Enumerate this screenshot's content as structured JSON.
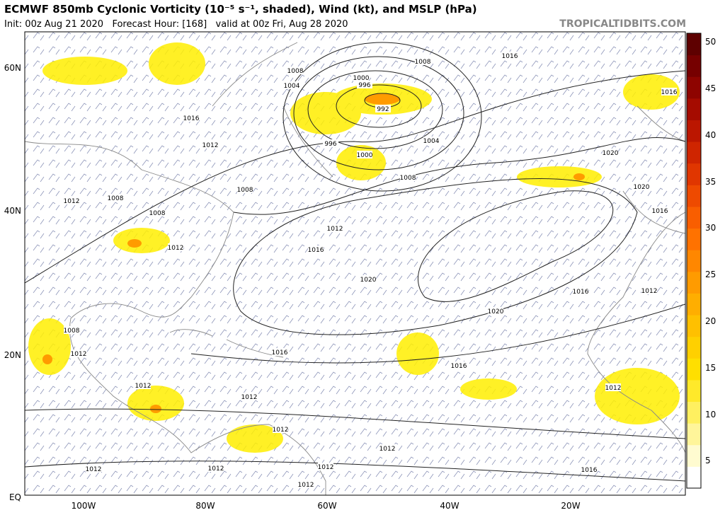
{
  "header": {
    "title": "ECMWF 850mb Cyclonic Vorticity (10⁻⁵ s⁻¹, shaded), Wind (kt), and MSLP (hPa)",
    "subtitle": "Init: 00z Aug 21 2020   Forecast Hour: [168]   valid at 00z Fri, Aug 28 2020",
    "brand": "TROPICALTIDBITS.COM"
  },
  "map": {
    "lat_labels": [
      "60N",
      "40N",
      "20N",
      "EQ"
    ],
    "lon_labels": [
      "100W",
      "80W",
      "60W",
      "40W",
      "20W"
    ],
    "isobar_labels": [
      "1008",
      "1016",
      "1008",
      "1000",
      "996",
      "1004",
      "992",
      "1016",
      "1016",
      "1012",
      "996",
      "1000",
      "1004",
      "1020",
      "1008",
      "1008",
      "1020",
      "1012",
      "1008",
      "1008",
      "1016",
      "1012",
      "1012",
      "1016",
      "1020",
      "1016",
      "1012",
      "1020",
      "1008",
      "1012",
      "1016",
      "1016",
      "1012",
      "1012",
      "1012",
      "1012",
      "1012",
      "1012",
      "1012",
      "1012",
      "1016",
      "1012"
    ]
  },
  "colorbar": {
    "ticks": [
      50,
      45,
      40,
      35,
      30,
      25,
      20,
      15,
      10,
      5
    ],
    "colors": [
      "#ffffff",
      "#fffbd0",
      "#fff59a",
      "#fff060",
      "#ffe92a",
      "#ffdf00",
      "#ffd000",
      "#ffc000",
      "#ffae00",
      "#ff9b00",
      "#ff8700",
      "#ff7200",
      "#f95e00",
      "#ee4a00",
      "#e03600",
      "#cf2500",
      "#bb1600",
      "#a50b00",
      "#8e0400",
      "#760000",
      "#5e0000"
    ]
  }
}
